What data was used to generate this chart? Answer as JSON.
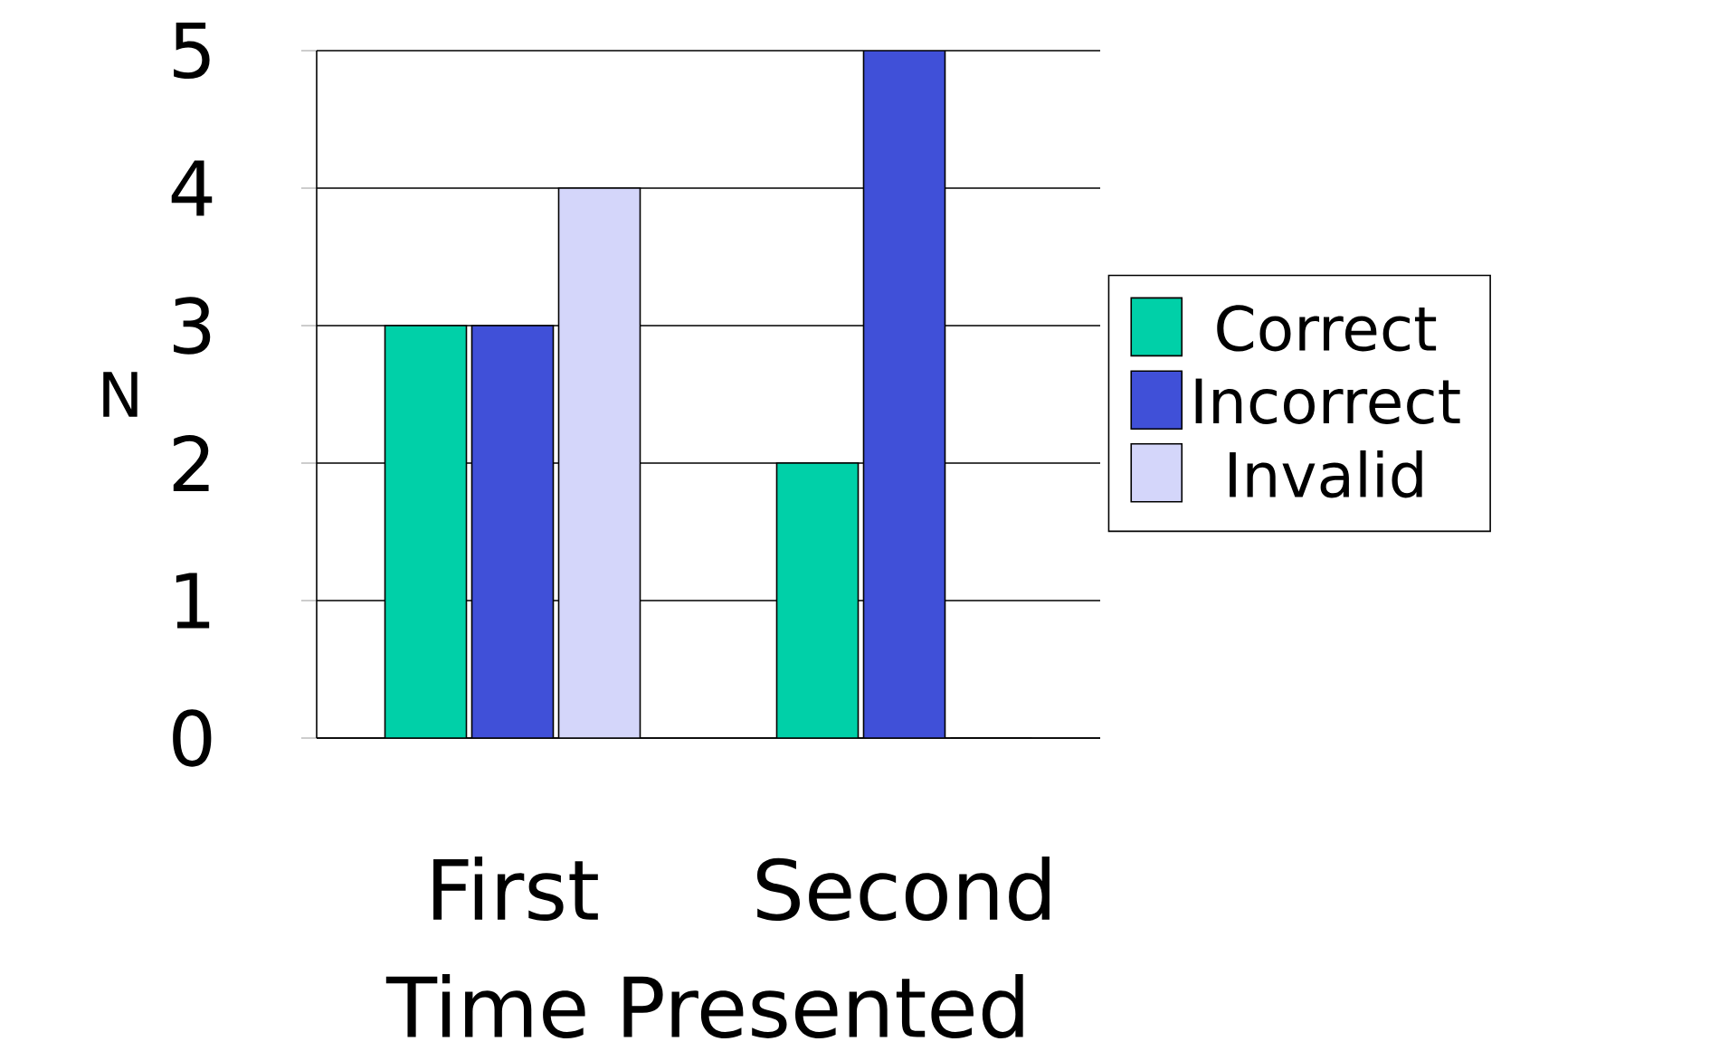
{
  "chart_data": {
    "type": "bar",
    "xlabel": "Time Presented",
    "ylabel": "N",
    "categories": [
      "First",
      "Second"
    ],
    "series": [
      {
        "name": "Correct",
        "color": "#00d0a8",
        "values": [
          3,
          2
        ]
      },
      {
        "name": "Incorrect",
        "color": "#4050d8",
        "values": [
          3,
          5
        ]
      },
      {
        "name": "Invalid",
        "color": "#d4d6fa",
        "values": [
          4,
          0
        ]
      }
    ],
    "ylim": [
      0,
      5
    ],
    "yticks": [
      0,
      1,
      2,
      3,
      4,
      5
    ],
    "grid": "y",
    "legend": "right"
  }
}
